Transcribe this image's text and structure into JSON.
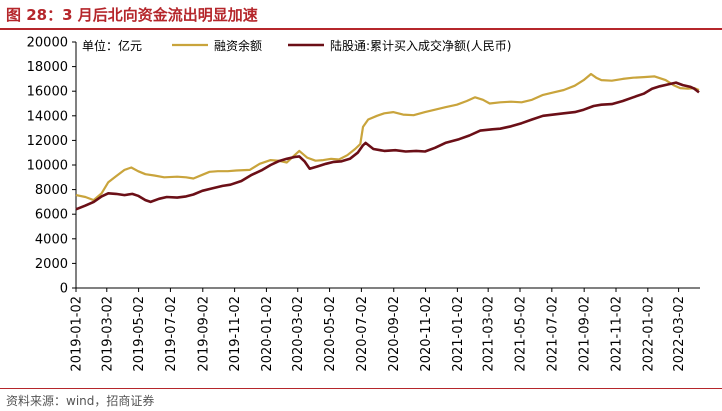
{
  "header": {
    "title": "图 28：3 月后北向资金流出明显加速"
  },
  "source": {
    "text": "资料来源：wind，招商证券"
  },
  "chart_data": {
    "type": "line",
    "unit_label": "单位：亿元",
    "ylim": [
      0,
      20000
    ],
    "y_ticks": [
      0,
      2000,
      4000,
      6000,
      8000,
      10000,
      12000,
      14000,
      16000,
      18000,
      20000
    ],
    "x_tick_labels": [
      "2019-01-02",
      "2019-03-02",
      "2019-05-02",
      "2019-07-02",
      "2019-09-02",
      "2019-11-02",
      "2020-01-02",
      "2020-03-02",
      "2020-05-02",
      "2020-07-02",
      "2020-09-02",
      "2020-11-02",
      "2021-01-02",
      "2021-03-02",
      "2021-05-02",
      "2021-07-02",
      "2021-09-02",
      "2021-11-02",
      "2022-01-02",
      "2022-03-02"
    ],
    "grid": false,
    "legend_position": "top",
    "series": [
      {
        "name": "融资余额",
        "color": "#c9a43c",
        "points": [
          [
            "2019-01-02",
            7550
          ],
          [
            "2019-01-20",
            7400
          ],
          [
            "2019-02-05",
            7150
          ],
          [
            "2019-02-20",
            7700
          ],
          [
            "2019-03-05",
            8600
          ],
          [
            "2019-03-20",
            9100
          ],
          [
            "2019-04-05",
            9600
          ],
          [
            "2019-04-18",
            9800
          ],
          [
            "2019-05-01",
            9500
          ],
          [
            "2019-05-15",
            9250
          ],
          [
            "2019-06-01",
            9150
          ],
          [
            "2019-06-20",
            9000
          ],
          [
            "2019-07-15",
            9050
          ],
          [
            "2019-08-01",
            9000
          ],
          [
            "2019-08-15",
            8900
          ],
          [
            "2019-09-01",
            9200
          ],
          [
            "2019-09-15",
            9450
          ],
          [
            "2019-10-01",
            9500
          ],
          [
            "2019-10-20",
            9500
          ],
          [
            "2019-11-05",
            9550
          ],
          [
            "2019-12-01",
            9600
          ],
          [
            "2019-12-20",
            10100
          ],
          [
            "2020-01-10",
            10400
          ],
          [
            "2020-01-25",
            10350
          ],
          [
            "2020-02-10",
            10200
          ],
          [
            "2020-02-25",
            10800
          ],
          [
            "2020-03-05",
            11150
          ],
          [
            "2020-03-20",
            10600
          ],
          [
            "2020-04-05",
            10350
          ],
          [
            "2020-04-20",
            10400
          ],
          [
            "2020-05-05",
            10500
          ],
          [
            "2020-05-20",
            10450
          ],
          [
            "2020-06-05",
            10800
          ],
          [
            "2020-06-20",
            11300
          ],
          [
            "2020-06-30",
            11700
          ],
          [
            "2020-07-05",
            13100
          ],
          [
            "2020-07-15",
            13700
          ],
          [
            "2020-08-01",
            14000
          ],
          [
            "2020-08-15",
            14200
          ],
          [
            "2020-09-01",
            14300
          ],
          [
            "2020-09-20",
            14100
          ],
          [
            "2020-10-10",
            14050
          ],
          [
            "2020-11-01",
            14300
          ],
          [
            "2020-11-20",
            14500
          ],
          [
            "2020-12-10",
            14700
          ],
          [
            "2021-01-01",
            14900
          ],
          [
            "2021-01-20",
            15200
          ],
          [
            "2021-02-05",
            15500
          ],
          [
            "2021-02-20",
            15300
          ],
          [
            "2021-03-05",
            15000
          ],
          [
            "2021-03-25",
            15100
          ],
          [
            "2021-04-15",
            15150
          ],
          [
            "2021-05-05",
            15100
          ],
          [
            "2021-05-25",
            15300
          ],
          [
            "2021-06-15",
            15700
          ],
          [
            "2021-07-05",
            15900
          ],
          [
            "2021-07-25",
            16100
          ],
          [
            "2021-08-15",
            16450
          ],
          [
            "2021-09-01",
            16900
          ],
          [
            "2021-09-15",
            17400
          ],
          [
            "2021-09-25",
            17100
          ],
          [
            "2021-10-05",
            16900
          ],
          [
            "2021-10-25",
            16850
          ],
          [
            "2021-11-15",
            17000
          ],
          [
            "2021-12-05",
            17100
          ],
          [
            "2021-12-25",
            17150
          ],
          [
            "2022-01-15",
            17200
          ],
          [
            "2022-02-05",
            16900
          ],
          [
            "2022-02-20",
            16500
          ],
          [
            "2022-03-05",
            16250
          ],
          [
            "2022-03-20",
            16200
          ],
          [
            "2022-04-01",
            16250
          ],
          [
            "2022-04-10",
            16100
          ]
        ]
      },
      {
        "name": "陆股通:累计买入成交净额(人民币)",
        "color": "#6b0f17",
        "points": [
          [
            "2019-01-02",
            6400
          ],
          [
            "2019-01-20",
            6700
          ],
          [
            "2019-02-05",
            7000
          ],
          [
            "2019-02-20",
            7450
          ],
          [
            "2019-03-05",
            7700
          ],
          [
            "2019-03-20",
            7650
          ],
          [
            "2019-04-05",
            7550
          ],
          [
            "2019-04-20",
            7650
          ],
          [
            "2019-05-01",
            7500
          ],
          [
            "2019-05-15",
            7150
          ],
          [
            "2019-05-25",
            7000
          ],
          [
            "2019-06-10",
            7250
          ],
          [
            "2019-06-25",
            7400
          ],
          [
            "2019-07-15",
            7350
          ],
          [
            "2019-08-01",
            7450
          ],
          [
            "2019-08-15",
            7600
          ],
          [
            "2019-09-01",
            7900
          ],
          [
            "2019-09-20",
            8100
          ],
          [
            "2019-10-10",
            8300
          ],
          [
            "2019-10-25",
            8400
          ],
          [
            "2019-11-15",
            8700
          ],
          [
            "2019-12-05",
            9200
          ],
          [
            "2019-12-25",
            9600
          ],
          [
            "2020-01-10",
            10000
          ],
          [
            "2020-01-25",
            10300
          ],
          [
            "2020-02-10",
            10500
          ],
          [
            "2020-02-25",
            10650
          ],
          [
            "2020-03-05",
            10700
          ],
          [
            "2020-03-15",
            10300
          ],
          [
            "2020-03-25",
            9700
          ],
          [
            "2020-04-10",
            9900
          ],
          [
            "2020-04-25",
            10100
          ],
          [
            "2020-05-10",
            10250
          ],
          [
            "2020-05-25",
            10300
          ],
          [
            "2020-06-10",
            10500
          ],
          [
            "2020-06-25",
            11000
          ],
          [
            "2020-07-05",
            11600
          ],
          [
            "2020-07-10",
            11800
          ],
          [
            "2020-07-25",
            11300
          ],
          [
            "2020-08-15",
            11150
          ],
          [
            "2020-09-05",
            11200
          ],
          [
            "2020-09-25",
            11100
          ],
          [
            "2020-10-15",
            11150
          ],
          [
            "2020-11-01",
            11100
          ],
          [
            "2020-11-20",
            11400
          ],
          [
            "2020-12-10",
            11800
          ],
          [
            "2021-01-05",
            12100
          ],
          [
            "2021-01-25",
            12400
          ],
          [
            "2021-02-15",
            12800
          ],
          [
            "2021-03-10",
            12900
          ],
          [
            "2021-03-25",
            12950
          ],
          [
            "2021-04-15",
            13150
          ],
          [
            "2021-05-05",
            13400
          ],
          [
            "2021-05-25",
            13700
          ],
          [
            "2021-06-15",
            14000
          ],
          [
            "2021-07-05",
            14100
          ],
          [
            "2021-07-25",
            14200
          ],
          [
            "2021-08-15",
            14300
          ],
          [
            "2021-09-01",
            14500
          ],
          [
            "2021-09-20",
            14800
          ],
          [
            "2021-10-05",
            14900
          ],
          [
            "2021-10-25",
            14950
          ],
          [
            "2021-11-15",
            15200
          ],
          [
            "2021-12-05",
            15500
          ],
          [
            "2021-12-25",
            15800
          ],
          [
            "2022-01-10",
            16200
          ],
          [
            "2022-01-25",
            16400
          ],
          [
            "2022-02-10",
            16550
          ],
          [
            "2022-02-25",
            16700
          ],
          [
            "2022-03-10",
            16500
          ],
          [
            "2022-03-25",
            16350
          ],
          [
            "2022-04-01",
            16200
          ],
          [
            "2022-04-10",
            15900
          ]
        ]
      }
    ]
  }
}
